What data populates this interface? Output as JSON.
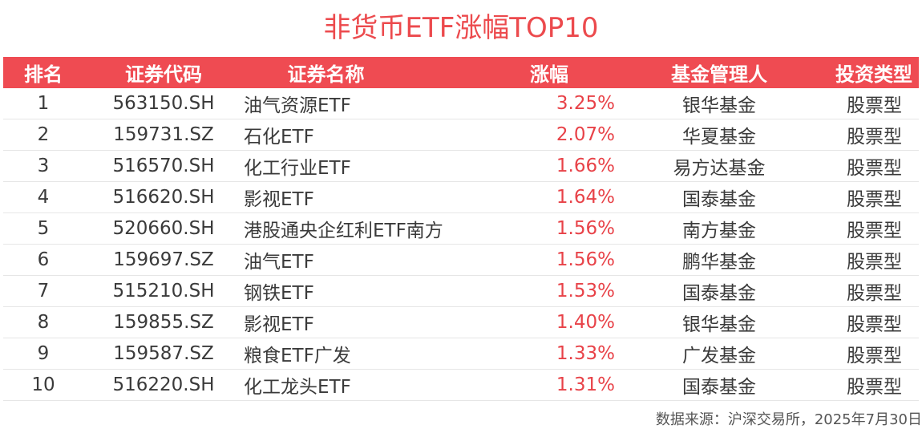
{
  "title": "非货币ETF涨幅TOP10",
  "headers": [
    "排名",
    "证券代码",
    "证券名称",
    "涨幅",
    "基金管理人",
    "投资类型"
  ],
  "rows": [
    [
      "1",
      "563150.SH",
      "油气资源ETF",
      "3.25%",
      "银华基金",
      "股票型"
    ],
    [
      "2",
      "159731.SZ",
      "石化ETF",
      "2.07%",
      "华夏基金",
      "股票型"
    ],
    [
      "3",
      "516570.SH",
      "化工行业ETF",
      "1.66%",
      "易方达基金",
      "股票型"
    ],
    [
      "4",
      "516620.SH",
      "影视ETF",
      "1.64%",
      "国泰基金",
      "股票型"
    ],
    [
      "5",
      "520660.SH",
      "港股通央企红利ETF南方",
      "1.56%",
      "南方基金",
      "股票型"
    ],
    [
      "6",
      "159697.SZ",
      "油气ETF",
      "1.56%",
      "鹏华基金",
      "股票型"
    ],
    [
      "7",
      "515210.SH",
      "钢铁ETF",
      "1.53%",
      "国泰基金",
      "股票型"
    ],
    [
      "8",
      "159855.SZ",
      "影视ETF",
      "1.40%",
      "银华基金",
      "股票型"
    ],
    [
      "9",
      "159587.SZ",
      "粮食ETF广发",
      "1.33%",
      "广发基金",
      "股票型"
    ],
    [
      "10",
      "516220.SH",
      "化工龙头ETF",
      "1.31%",
      "国泰基金",
      "股票型"
    ]
  ],
  "source": "数据来源：沪深交易所，2025年7月30日",
  "colors": {
    "accent": "#ef4b52",
    "gain_text": "#e84248",
    "title": "#ec4a4d"
  }
}
